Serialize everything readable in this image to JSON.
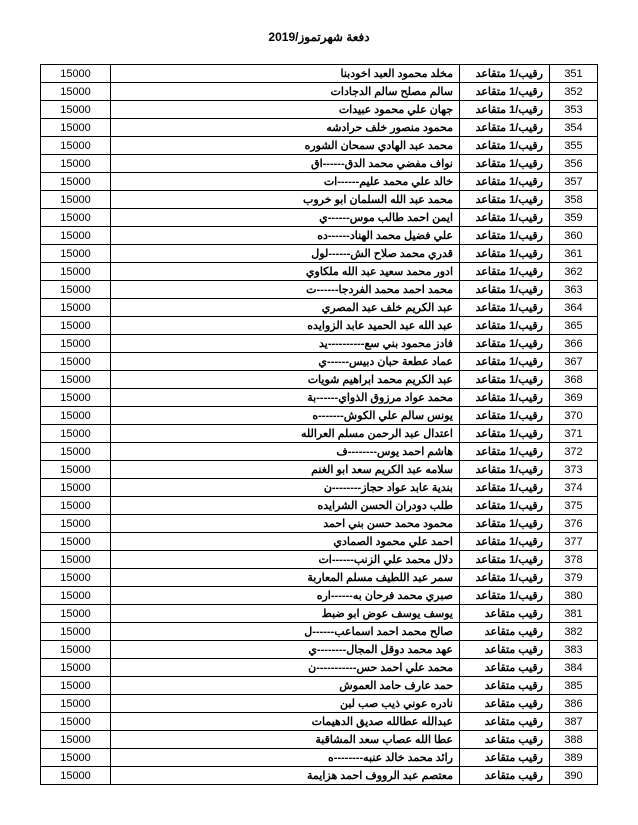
{
  "header": "دفعة شهرتموز/2019",
  "table": {
    "rows": [
      {
        "num": "351",
        "rank": "رقيب/1 متقاعد",
        "name": "مخلد محمود العبد اخودبنا",
        "amount": "15000"
      },
      {
        "num": "352",
        "rank": "رقيب/1 متقاعد",
        "name": "سالم مصلح سالم الدجادات",
        "amount": "15000"
      },
      {
        "num": "353",
        "rank": "رقيب/1 متقاعد",
        "name": "جهان علي محمود عبيدات",
        "amount": "15000"
      },
      {
        "num": "354",
        "rank": "رقيب/1 متقاعد",
        "name": "محمود منصور خلف حرادشه",
        "amount": "15000"
      },
      {
        "num": "355",
        "rank": "رقيب/1 متقاعد",
        "name": "محمد عبد الهادي سمحان الشوره",
        "amount": "15000"
      },
      {
        "num": "356",
        "rank": "رقيب/1 متقاعد",
        "name": "نواف مفضي محمد الدق------اق",
        "amount": "15000"
      },
      {
        "num": "357",
        "rank": "رقيب/1 متقاعد",
        "name": "خالد علي محمد عليم------ات",
        "amount": "15000"
      },
      {
        "num": "358",
        "rank": "رقيب/1 متقاعد",
        "name": "محمد عبد الله السلمان ابو خروب",
        "amount": "15000"
      },
      {
        "num": "359",
        "rank": "رقيب/1 متقاعد",
        "name": "ايمن احمد طالب موس------ي",
        "amount": "15000"
      },
      {
        "num": "360",
        "rank": "رقيب/1 متقاعد",
        "name": "علي فضيل محمد الهناد------ده",
        "amount": "15000"
      },
      {
        "num": "361",
        "rank": "رقيب/1 متقاعد",
        "name": "قدري محمد صلاح الش------لول",
        "amount": "15000"
      },
      {
        "num": "362",
        "rank": "رقيب/1 متقاعد",
        "name": "ادور محمد سعيد عبد الله ملكاوي",
        "amount": "15000"
      },
      {
        "num": "363",
        "rank": "رقيب/1 متقاعد",
        "name": "محمد احمد محمد الفردجا------ت",
        "amount": "15000"
      },
      {
        "num": "364",
        "rank": "رقيب/1 متقاعد",
        "name": "عبد الكريم خلف عبد المصري",
        "amount": "15000"
      },
      {
        "num": "365",
        "rank": "رقيب/1 متقاعد",
        "name": "عبد الله عبد الحميد عابد الزوايده",
        "amount": "15000"
      },
      {
        "num": "366",
        "rank": "رقيب/1 متقاعد",
        "name": "فادز محمود بني سع----------يد",
        "amount": "15000"
      },
      {
        "num": "367",
        "rank": "رقيب/1 متقاعد",
        "name": "عماد عطعة حبان دبيس------ي",
        "amount": "15000"
      },
      {
        "num": "368",
        "rank": "رقيب/1 متقاعد",
        "name": "عبد الكريم محمد ابراهيم شويات",
        "amount": "15000"
      },
      {
        "num": "369",
        "rank": "رقيب/1 متقاعد",
        "name": "محمد عواد مرزوق الذواي------بة",
        "amount": "15000"
      },
      {
        "num": "370",
        "rank": "رقيب/1 متقاعد",
        "name": "يونس سالم علي الكوش-------ه",
        "amount": "15000"
      },
      {
        "num": "371",
        "rank": "رقيب/1 متقاعد",
        "name": "اعتدال عبد الرحمن مسلم العرالله",
        "amount": "15000"
      },
      {
        "num": "372",
        "rank": "رقيب/1 متقاعد",
        "name": "هاشم احمد يوس--------ف",
        "amount": "15000"
      },
      {
        "num": "373",
        "rank": "رقيب/1 متقاعد",
        "name": "سلامه عبد الكريم سعد ابو الغنم",
        "amount": "15000"
      },
      {
        "num": "374",
        "rank": "رقيب/1 متقاعد",
        "name": "بندية عابد عواد حجاز--------ن",
        "amount": "15000"
      },
      {
        "num": "375",
        "rank": "رقيب/1 متقاعد",
        "name": "طلب دودران الحسن الشرايده",
        "amount": "15000"
      },
      {
        "num": "376",
        "rank": "رقيب/1 متقاعد",
        "name": "محمود محمد حسن بني احمد",
        "amount": "15000"
      },
      {
        "num": "377",
        "rank": "رقيب/1 متقاعد",
        "name": "احمد علي محمود الصمادي",
        "amount": "15000"
      },
      {
        "num": "378",
        "rank": "رقيب/1 متقاعد",
        "name": "دلال محمد علي الزنب------ات",
        "amount": "15000"
      },
      {
        "num": "379",
        "rank": "رقيب/1 متقاعد",
        "name": "سمر عبد اللطيف مسلم المعاربة",
        "amount": "15000"
      },
      {
        "num": "380",
        "rank": "رقيب/1 متقاعد",
        "name": "صبري محمد فرحان به------اره",
        "amount": "15000"
      },
      {
        "num": "381",
        "rank": "رقيب متقاعد",
        "name": "يوسف يوسف عوض ابو ضبط",
        "amount": "15000"
      },
      {
        "num": "382",
        "rank": "رقيب متقاعد",
        "name": "صالح محمد احمد اسماعب------ل",
        "amount": "15000"
      },
      {
        "num": "383",
        "rank": "رقيب متقاعد",
        "name": "عهد محمد دوقل المجال--------ي",
        "amount": "15000"
      },
      {
        "num": "384",
        "rank": "رقيب متقاعد",
        "name": "محمد علي احمد حس-----------ن",
        "amount": "15000"
      },
      {
        "num": "385",
        "rank": "رقيب متقاعد",
        "name": "حمد عارف حامد العموش",
        "amount": "15000"
      },
      {
        "num": "386",
        "rank": "رقيب متقاعد",
        "name": "نادره عوني ذيب صب لبن",
        "amount": "15000"
      },
      {
        "num": "387",
        "rank": "رقيب متقاعد",
        "name": "عبدالله عطالله صديق الدهيمات",
        "amount": "15000"
      },
      {
        "num": "388",
        "rank": "رقيب متقاعد",
        "name": "عطا الله عصاب سعد المشاقبة",
        "amount": "15000"
      },
      {
        "num": "389",
        "rank": "رقيب متقاعد",
        "name": "رائد محمد خالد عنبه--------ه",
        "amount": "15000"
      },
      {
        "num": "390",
        "rank": "رقيب متقاعد",
        "name": "معتصم عبد الرووف احمد هزايمة",
        "amount": "15000"
      }
    ]
  }
}
